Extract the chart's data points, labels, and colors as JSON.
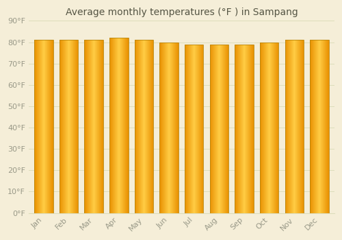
{
  "title": "Average monthly temperatures (°F ) in Sampang",
  "categories": [
    "Jan",
    "Feb",
    "Mar",
    "Apr",
    "May",
    "Jun",
    "Jul",
    "Aug",
    "Sep",
    "Oct",
    "Nov",
    "Dec"
  ],
  "values": [
    81,
    81,
    81,
    82,
    81,
    80,
    79,
    79,
    79,
    80,
    81,
    81
  ],
  "bar_color_center": "#FFCC44",
  "bar_color_edge": "#E89000",
  "bar_edge_color": "#B8860B",
  "background_color": "#F5EED8",
  "grid_color": "#DDDDBB",
  "ylim": [
    0,
    90
  ],
  "yticks": [
    0,
    10,
    20,
    30,
    40,
    50,
    60,
    70,
    80,
    90
  ],
  "ytick_labels": [
    "0°F",
    "10°F",
    "20°F",
    "30°F",
    "40°F",
    "50°F",
    "60°F",
    "70°F",
    "80°F",
    "90°F"
  ],
  "title_fontsize": 10,
  "tick_fontsize": 8,
  "font_color": "#999988",
  "title_font_color": "#555544",
  "bar_width": 0.75,
  "figsize": [
    5.0,
    3.5
  ],
  "dpi": 100
}
